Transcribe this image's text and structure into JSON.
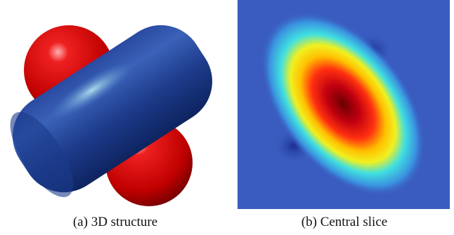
{
  "figure": {
    "subfigures": [
      {
        "caption": "(a) 3D structure"
      },
      {
        "caption": "(b) Central slice"
      }
    ]
  }
}
